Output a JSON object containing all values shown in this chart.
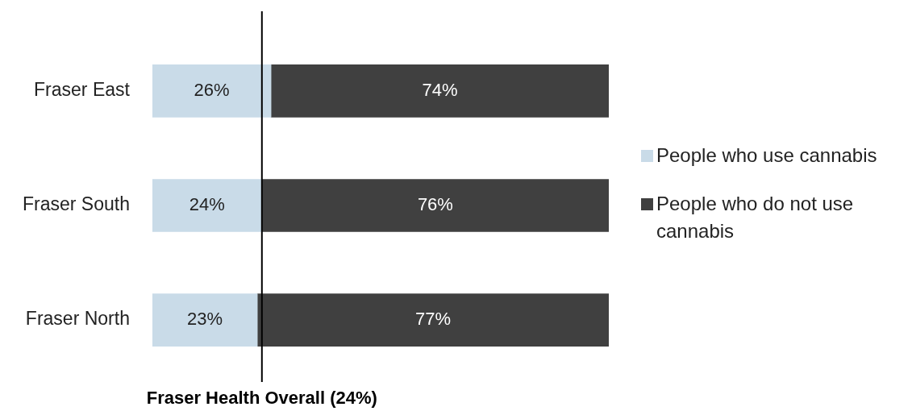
{
  "chart_data": {
    "type": "bar",
    "orientation": "horizontal",
    "stacked": true,
    "categories": [
      "Fraser East",
      "Fraser South",
      "Fraser North"
    ],
    "series": [
      {
        "name": "People who use cannabis",
        "color": "#c9dbe8",
        "values": [
          26,
          24,
          23
        ],
        "value_labels": [
          "26%",
          "24%",
          "23%"
        ]
      },
      {
        "name": "People who do not use cannabis",
        "color": "#404040",
        "values": [
          74,
          76,
          77
        ],
        "value_labels": [
          "74%",
          "76%",
          "77%"
        ]
      }
    ],
    "tick_labels": "y",
    "grid": false,
    "legend": "right",
    "ref_lines": [
      {
        "axis": "x",
        "value": 24,
        "label": "Fraser Health Overall (24%)",
        "color": "#000000"
      }
    ]
  }
}
